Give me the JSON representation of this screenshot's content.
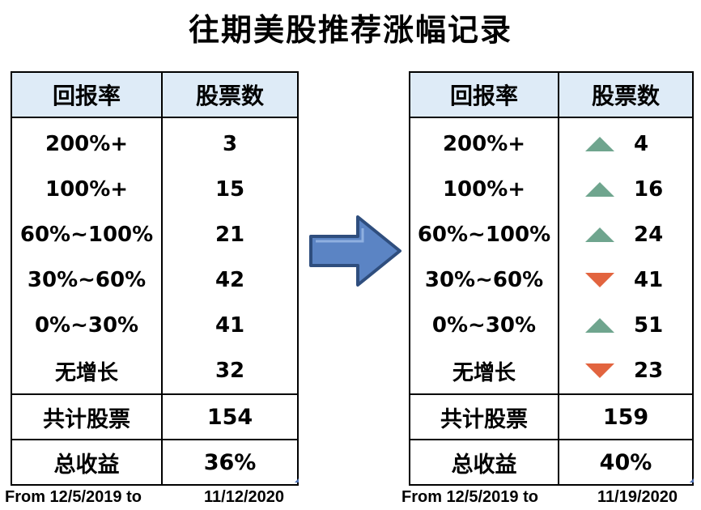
{
  "title": "往期美股推荐涨幅记录",
  "headers": {
    "rate": "回报率",
    "count": "股票数"
  },
  "left": {
    "rows": [
      {
        "rate": "200%+",
        "count": "3"
      },
      {
        "rate": "100%+",
        "count": "15"
      },
      {
        "rate": "60%~100%",
        "count": "21"
      },
      {
        "rate": "30%~60%",
        "count": "42"
      },
      {
        "rate": "0%~30%",
        "count": "41"
      },
      {
        "rate": "无增长",
        "count": "32"
      }
    ],
    "total_label": "共计股票",
    "total_value": "154",
    "return_label": "总收益",
    "return_value": "36%",
    "footer_from": "From 12/5/2019 to",
    "footer_to": "11/12/2020"
  },
  "right": {
    "rows": [
      {
        "rate": "200%+",
        "count": "4",
        "trend": "up"
      },
      {
        "rate": "100%+",
        "count": "16",
        "trend": "up"
      },
      {
        "rate": "60%~100%",
        "count": "24",
        "trend": "up"
      },
      {
        "rate": "30%~60%",
        "count": "41",
        "trend": "down"
      },
      {
        "rate": "0%~30%",
        "count": "51",
        "trend": "up"
      },
      {
        "rate": "无增长",
        "count": "23",
        "trend": "down"
      }
    ],
    "total_label": "共计股票",
    "total_value": "159",
    "return_label": "总收益",
    "return_value": "40%",
    "footer_from": "From 12/5/2019 to",
    "footer_to": "11/19/2020"
  },
  "colors": {
    "header_bg": "#deebf7",
    "up": "#6fa58e",
    "down": "#e2643f",
    "arrow_fill": "#5b84c4",
    "arrow_stroke": "#2f4e7e"
  },
  "icons": {
    "arrow": "right-arrow-icon",
    "up": "triangle-up-icon",
    "down": "triangle-down-icon"
  }
}
